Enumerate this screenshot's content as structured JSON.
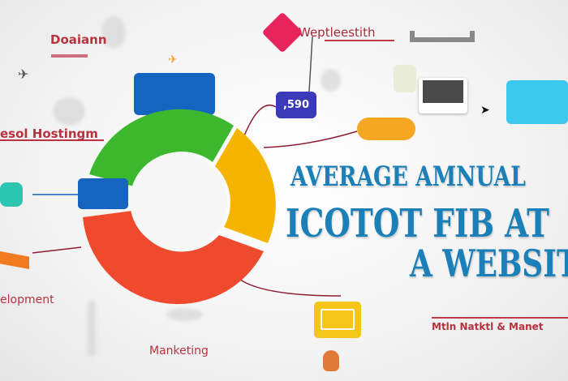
{
  "labels": {
    "domain": "Doaiann",
    "hosting": "esol Hostingm",
    "website_top": "Weptleestith",
    "price_badge": ",590",
    "development": "elopment",
    "marketing": "Manketing",
    "maintenance": "Mtln Natktl & Manet"
  },
  "title": {
    "line1": "AVERAGE AMNUAL",
    "line2": "ICOTOT FIB AT",
    "line3": "A WEBSIT"
  },
  "donut": {
    "segments": [
      {
        "name": "green",
        "color": "#3cb82e"
      },
      {
        "name": "yellow",
        "color": "#f4b400"
      },
      {
        "name": "red",
        "color": "#f04a2e"
      }
    ],
    "accent_blue": "#1565c0"
  },
  "colors": {
    "label_red": "#b8323f",
    "title_blue": "#1b7fb8",
    "connector": "#8c1d33"
  }
}
